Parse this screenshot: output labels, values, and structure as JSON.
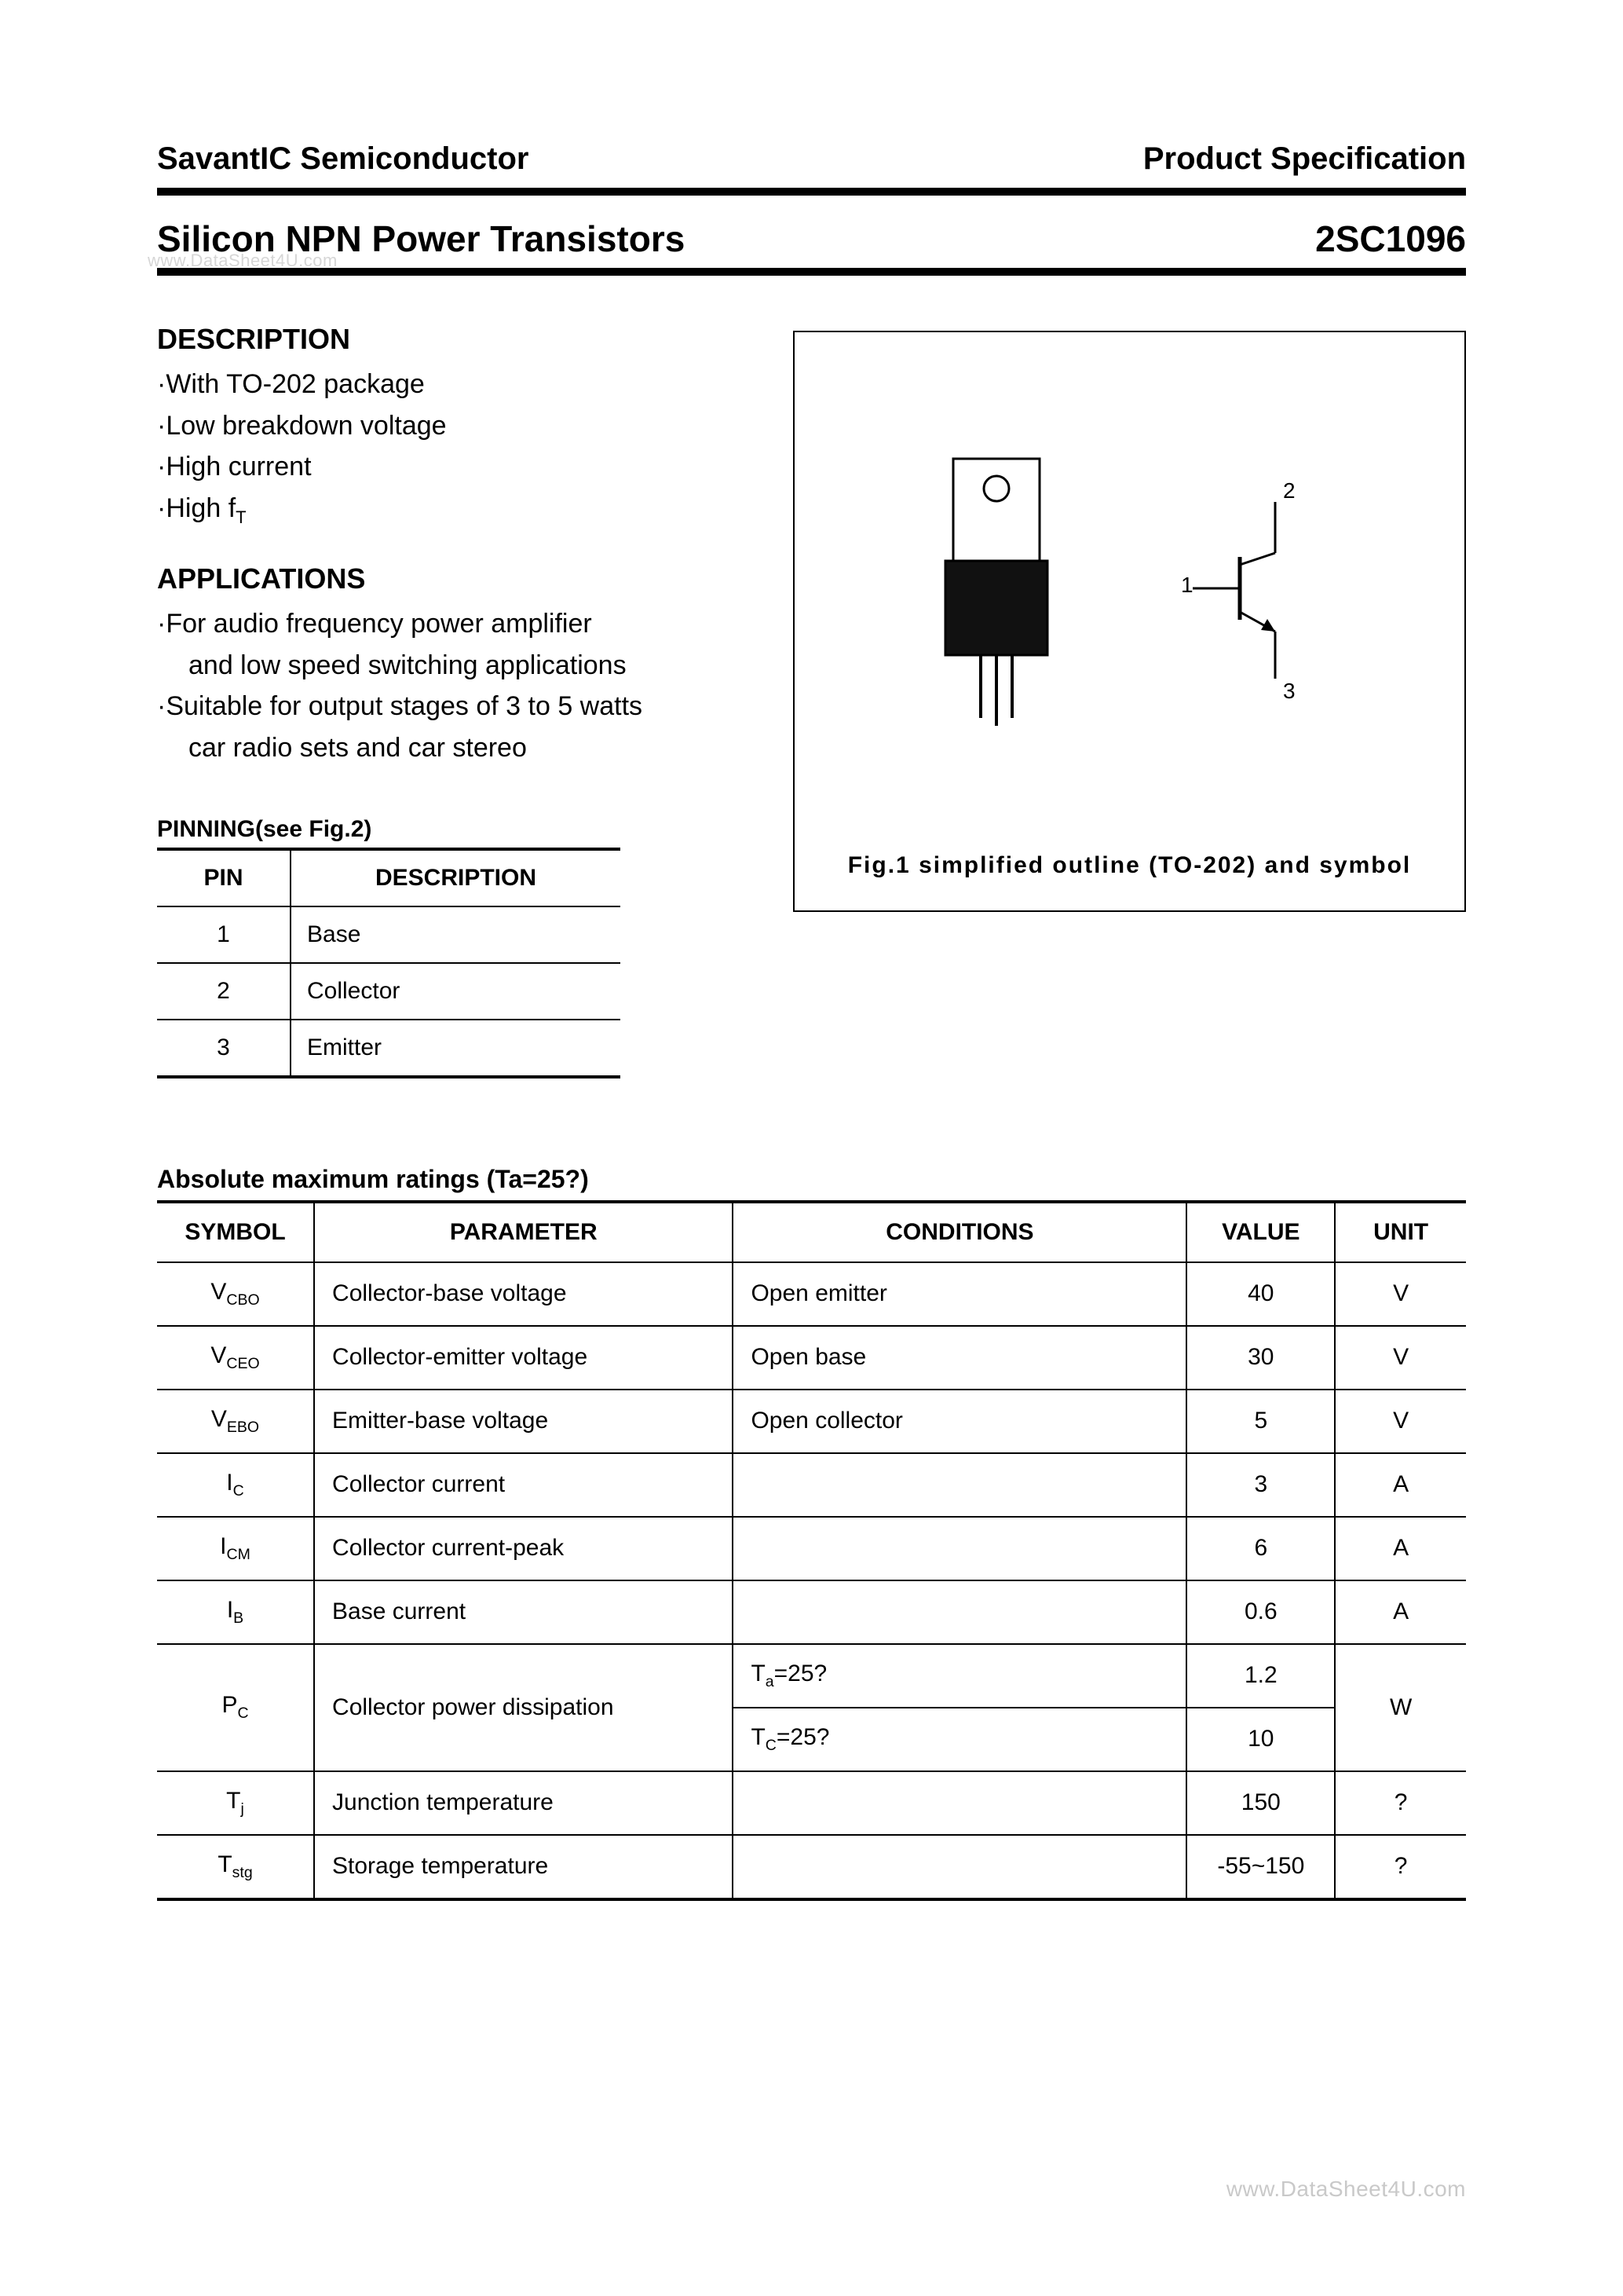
{
  "header": {
    "company": "SavantIC Semiconductor",
    "doc_type": "Product Specification"
  },
  "title": {
    "left": "Silicon NPN Power Transistors",
    "right": "2SC1096",
    "watermark_under": "www.DataSheet4U.com"
  },
  "description": {
    "heading": "DESCRIPTION",
    "items": [
      {
        "text": "·With TO-202 package"
      },
      {
        "text": "·Low breakdown voltage"
      },
      {
        "text": "·High current"
      },
      {
        "html": "·High f<span class='sub'>T</span>"
      }
    ]
  },
  "applications": {
    "heading": "APPLICATIONS",
    "lines": [
      {
        "text": "·For audio frequency power amplifier",
        "indent": false
      },
      {
        "text": "and low speed switching applications",
        "indent": true
      },
      {
        "text": "·Suitable for output stages of 3 to 5 watts",
        "indent": false
      },
      {
        "text": "car radio sets and car stereo",
        "indent": true
      }
    ]
  },
  "pinning": {
    "heading": "PINNING(see Fig.2)",
    "columns": [
      "PIN",
      "DESCRIPTION"
    ],
    "rows": [
      {
        "pin": "1",
        "desc": "Base"
      },
      {
        "pin": "2",
        "desc": "Collector"
      },
      {
        "pin": "3",
        "desc": "Emitter"
      }
    ],
    "col_widths": [
      "170px",
      "420px"
    ]
  },
  "figure": {
    "caption": "Fig.1  simplified  outline  (TO-202)  and  symbol",
    "package": {
      "tab_color": "#ffffff",
      "body_color": "#111111",
      "outline_color": "#000000",
      "hole_radius": 12,
      "label_1": "1",
      "label_2": "2",
      "label_3": "3"
    }
  },
  "ratings": {
    "heading": "Absolute maximum ratings (Ta=25?)",
    "columns": [
      "SYMBOL",
      "PARAMETER",
      "CONDITIONS",
      "VALUE",
      "UNIT"
    ],
    "col_widths": [
      "180px",
      "480px",
      "520px",
      "170px",
      "150px"
    ],
    "rows": [
      {
        "sym_html": "V<span class='sub'>CBO</span>",
        "param": "Collector-base voltage",
        "cond": "Open emitter",
        "value": "40",
        "unit": "V"
      },
      {
        "sym_html": "V<span class='sub'>CEO</span>",
        "param": "Collector-emitter voltage",
        "cond": "Open base",
        "value": "30",
        "unit": "V"
      },
      {
        "sym_html": "V<span class='sub'>EBO</span>",
        "param": "Emitter-base voltage",
        "cond": "Open collector",
        "value": "5",
        "unit": "V"
      },
      {
        "sym_html": "I<span class='sub'>C</span>",
        "param": "Collector current",
        "cond": "",
        "value": "3",
        "unit": "A"
      },
      {
        "sym_html": "I<span class='sub'>CM</span>",
        "param": "Collector current-peak",
        "cond": "",
        "value": "6",
        "unit": "A"
      },
      {
        "sym_html": "I<span class='sub'>B</span>",
        "param": "Base current",
        "cond": "",
        "value": "0.6",
        "unit": "A"
      }
    ],
    "pc_row": {
      "sym_html": "P<span class='sub'>C</span>",
      "param": "Collector power dissipation",
      "cond1_html": "T<span class='sub'>a</span>=25?",
      "value1": "1.2",
      "cond2_html": "T<span class='sub'>C</span>=25?",
      "value2": "10",
      "unit": "W"
    },
    "tail_rows": [
      {
        "sym_html": "T<span class='sub'>j</span>",
        "param": "Junction temperature",
        "cond": "",
        "value": "150",
        "unit": "?"
      },
      {
        "sym_html": "T<span class='sub'>stg</span>",
        "param": "Storage temperature",
        "cond": "",
        "value": "-55~150",
        "unit": "?"
      }
    ]
  },
  "footer_watermark": "www.DataSheet4U.com"
}
